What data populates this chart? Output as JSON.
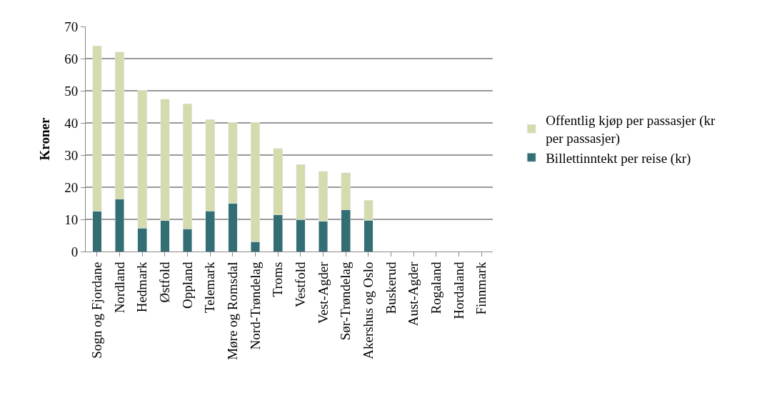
{
  "chart_data": {
    "type": "bar",
    "stacked": true,
    "ylabel": "Kroner",
    "categories": [
      "Sogn og Fjordane",
      "Nordland",
      "Hedmark",
      "Østfold",
      "Oppland",
      "Telemark",
      "Møre og Romsdal",
      "Nord-Trøndelag",
      "Troms",
      "Vestfold",
      "Vest-Agder",
      "Sør-Trøndelag",
      "Akershus og Oslo",
      "Buskerud",
      "Aust-Agder",
      "Rogaland",
      "Hordaland",
      "Finnmark"
    ],
    "series": [
      {
        "name": "Billettinntekt per reise (kr)",
        "color": "#346e75",
        "values": [
          12.5,
          16.3,
          7.3,
          9.6,
          7.1,
          12.6,
          14.9,
          3.1,
          11.4,
          9.9,
          9.4,
          12.9,
          9.7,
          null,
          null,
          null,
          null,
          null
        ]
      },
      {
        "name": "Offentlig kjøp per passasjer (kr per passasjer)",
        "color": "#d5dbad",
        "values": [
          51.5,
          45.8,
          42.9,
          37.8,
          38.9,
          28.5,
          25.3,
          37.1,
          20.7,
          17.2,
          15.6,
          11.6,
          6.3,
          null,
          null,
          null,
          null,
          null
        ]
      }
    ],
    "ylim": [
      0,
      70
    ],
    "yticks": [
      0,
      10,
      20,
      30,
      40,
      50,
      60,
      70
    ],
    "grid": "y",
    "legend": "right"
  }
}
